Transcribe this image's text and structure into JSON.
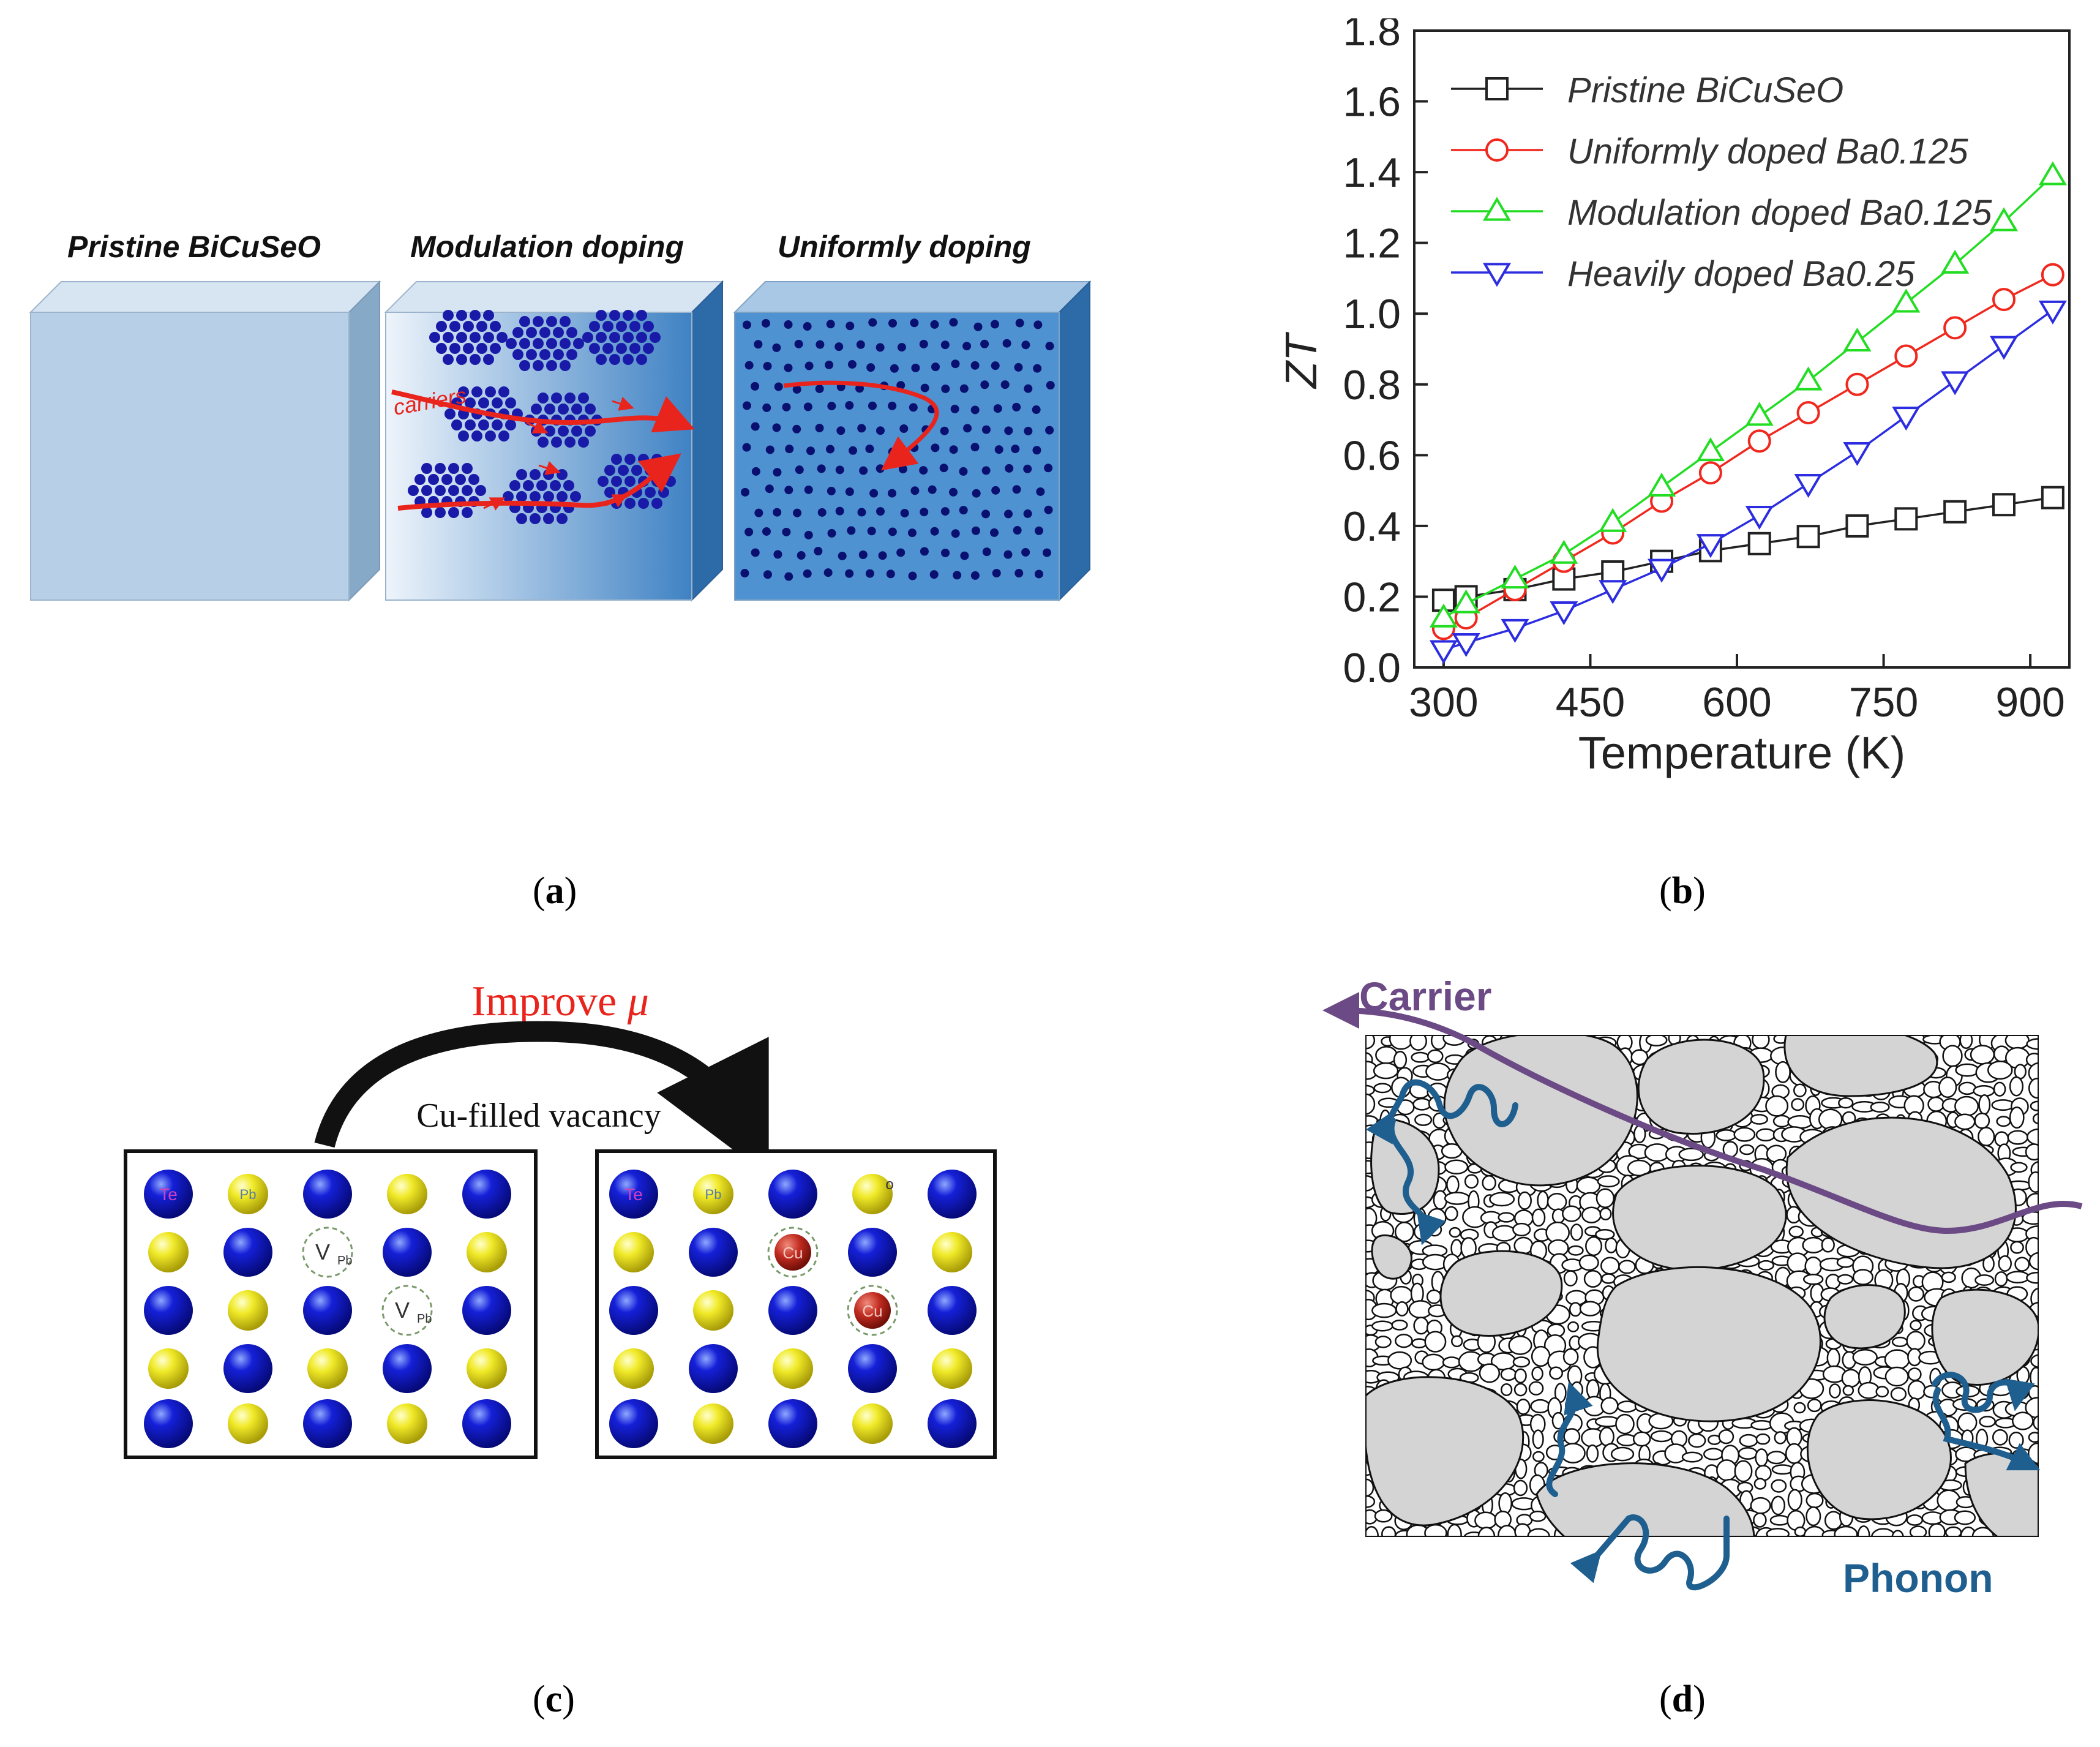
{
  "panel_a": {
    "titles": [
      "Pristine  BiCuSeO",
      "Modulation doping",
      "Uniformly doping"
    ],
    "carriers_label": "carriers",
    "colors": {
      "cube_front": "#b7d0e8",
      "cube_side": "#87a9c8",
      "cube_top": "#d7e5f3",
      "dopant": "#1a1aa8",
      "arrow": "#e8241d"
    }
  },
  "panel_b": {
    "chart_data": {
      "type": "line",
      "xlabel": "Temperature (K)",
      "ylabel": "ZT",
      "xlim": [
        270,
        940
      ],
      "ylim": [
        0.0,
        1.8
      ],
      "xticks": [
        300,
        450,
        600,
        750,
        900
      ],
      "yticks": [
        "0.0",
        "0.2",
        "0.4",
        "0.6",
        "0.8",
        "1.0",
        "1.2",
        "1.4",
        "1.6",
        "1.8"
      ],
      "legend_position": "top-left",
      "x": [
        300,
        323,
        373,
        423,
        473,
        523,
        573,
        623,
        673,
        723,
        773,
        823,
        873,
        923
      ],
      "series": [
        {
          "name": "Pristine BiCuSeO",
          "marker": "square",
          "color": "#222222",
          "values": [
            0.19,
            0.2,
            0.22,
            0.25,
            0.27,
            0.3,
            0.33,
            0.35,
            0.37,
            0.4,
            0.42,
            0.44,
            0.46,
            0.48
          ]
        },
        {
          "name": "Uniformly doped Ba0.125",
          "marker": "circle",
          "color": "#f0281e",
          "values": [
            0.11,
            0.14,
            0.22,
            0.3,
            0.38,
            0.47,
            0.55,
            0.64,
            0.72,
            0.8,
            0.88,
            0.96,
            1.04,
            1.11
          ]
        },
        {
          "name": "Modulation doped Ba0.125",
          "marker": "triangle-up",
          "color": "#22dd22",
          "values": [
            0.14,
            0.18,
            0.25,
            0.32,
            0.41,
            0.51,
            0.61,
            0.71,
            0.81,
            0.92,
            1.03,
            1.14,
            1.26,
            1.39
          ]
        },
        {
          "name": "Heavily doped Ba0.25",
          "marker": "triangle-down",
          "color": "#2c2ce0",
          "values": [
            0.05,
            0.07,
            0.11,
            0.16,
            0.22,
            0.28,
            0.35,
            0.43,
            0.52,
            0.61,
            0.71,
            0.81,
            0.91,
            1.01
          ]
        }
      ]
    }
  },
  "panel_c": {
    "title_prefix": "Improve ",
    "title_symbol": "μ",
    "subtitle": "Cu-filled vacancy",
    "labels": {
      "te": "Te",
      "pb": "Pb",
      "v": "V",
      "v_sub": "Pb",
      "cu": "Cu",
      "o": "o"
    },
    "colors": {
      "te": "#0a10c8",
      "pb": "#e8e020",
      "cu": "#b8281e",
      "title": "#e8241d"
    }
  },
  "panel_d": {
    "carrier_label": "Carrier",
    "phonon_label": "Phonon",
    "colors": {
      "carrier": "#6b4a85",
      "phonon": "#1f5f8f",
      "grain": "#d4d4d4"
    }
  },
  "captions": [
    "a",
    "b",
    "c",
    "d"
  ]
}
